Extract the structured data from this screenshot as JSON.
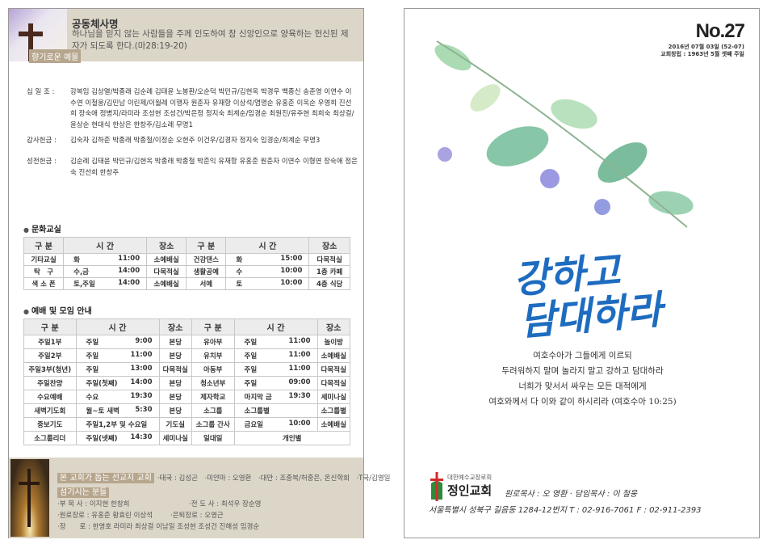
{
  "left": {
    "mission": {
      "title": "공동체사명",
      "text": "하나님을 믿지 않는 사람들을 주께 인도하여 참 신앙인으로  양육하는 헌신된 제자가 되도록 한다.(마28:19-20)",
      "tag": "향기로운 예물"
    },
    "offerings": [
      {
        "label": "십 일 조 :",
        "names": "강복임 김상열/박종래 김순례 김태윤 노봉환/오순덕 박민규/김현옥 박경우 백종신 송춘영 이연수 이수연 이철웅/김민남 이린제/이월례 이행자 원춘자 유재항 이상석/염명순 유홍준 이옥순 우영희 진선희 장숙애 정병지/라미라 조성현 조성건/박은정 정지숙 최계순/임경순 최원진/유주현 최희숙 최상걸/윤상순 현대식 한상은 한창주/김소례 무명1"
      },
      {
        "label": "감사헌금 :",
        "names": "김숙자 김하준 박종래 박종철/이정순 오현주 이건우/김경자 정지숙 임경순/최계순 무명3"
      },
      {
        "label": "성전헌금 :",
        "names": "김순례 김태윤 박민규/김현옥 박종래 박종철 박준익 유재항 유홍준 원춘자 이연수 이형연 장숙애 정은숙 진선희 한창주"
      }
    ],
    "culture": {
      "title": "문화교실",
      "headers": [
        "구 분",
        "시 간",
        "장소",
        "구 분",
        "시 간",
        "장소"
      ],
      "rows": [
        [
          "기타교실",
          "화",
          "11:00",
          "소예배실",
          "건강댄스",
          "화",
          "15:00",
          "다목적실"
        ],
        [
          "탁　구",
          "수,금",
          "14:00",
          "다목적실",
          "생활공예",
          "수",
          "10:00",
          "1층 카페"
        ],
        [
          "색 소 폰",
          "토,주일",
          "14:00",
          "소예배실",
          "서예",
          "토",
          "10:00",
          "4층 식당"
        ]
      ]
    },
    "worship": {
      "title": "예배 및 모임 안내",
      "headers": [
        "구 분",
        "시 간",
        "장소",
        "구 분",
        "시 간",
        "장소"
      ],
      "rows": [
        [
          "주일1부",
          "주일",
          "9:00",
          "본당",
          "유아부",
          "주일",
          "11:00",
          "놀이방"
        ],
        [
          "주일2부",
          "주일",
          "11:00",
          "본당",
          "유치부",
          "주일",
          "11:00",
          "소예배실"
        ],
        [
          "주일3부(청년)",
          "주일",
          "13:00",
          "다목적실",
          "아동부",
          "주일",
          "11:00",
          "다목적실"
        ],
        [
          "주일찬양",
          "주일(첫째)",
          "14:00",
          "본당",
          "청소년부",
          "주일",
          "09:00",
          "다목적실"
        ],
        [
          "수요예배",
          "수요",
          "19:30",
          "본당",
          "제자학교",
          "마지막 금",
          "19:30",
          "세미나실"
        ],
        [
          "새벽기도회",
          "월~토 새벽",
          "5:30",
          "본당",
          "소그룹",
          "소그룹별",
          "",
          "소그룹별"
        ],
        [
          "중보기도",
          "주일1,2부 및 수요일",
          "",
          "기도실",
          "소그룹 간사",
          "금요일",
          "10:00",
          "소예배실"
        ],
        [
          "소그룹리더",
          "주일(넷째)",
          "14:30",
          "세미나실",
          "일대일",
          "개인별",
          "",
          ""
        ]
      ]
    },
    "footer": {
      "mission_tag": "본 교회가 돕는 선교지 교회",
      "missions": "·태국 : 김성곤　·미얀마 : 오영환　·대만 : 조중복/허중은, 온신학회　·T국/김영일",
      "serve_tag": "섬기시는 분들",
      "lines": [
        [
          "·부 목 사 : 이지현 한창희",
          "·전 도 사 : 최석우 장순영"
        ],
        [
          "·원로장로 : 유홍준 황효린 이상석",
          "·은퇴장로 : 오영근"
        ],
        [
          "·장　　로 : 한영호 라미라 최상걸 이남일 조성현 조성건 진해성 임경순",
          ""
        ]
      ]
    }
  },
  "right": {
    "issue": "No.27",
    "date": "2016년 07월 03일 (52-07)",
    "founded": "교회창립 : 1963년 5월 셋째 주일",
    "calligraphy": [
      "강하고",
      "담대하라"
    ],
    "verse": [
      "여호수아가 그들에게 이르되",
      "두려워하지 말며 놀라지 말고 강하고 담대하라",
      "너희가 맞서서 싸우는 모든 대적에게",
      "여호와께서 다 이와 같이 하시리라 (여호수아 10:25)"
    ],
    "denomination": "대한예수교장로회",
    "church": "정인교회",
    "pastors": "원로목사 : 오 영환 · 담임목사 : 이 철웅",
    "address": "서울특별시 성북구 길음동 1284-12번지  T : 02-916-7061  F : 02-911-2393",
    "colors": {
      "calligraphy": "#1e6cc0",
      "logo_red": "#d62a2a",
      "logo_green": "#2e8a3a"
    }
  }
}
